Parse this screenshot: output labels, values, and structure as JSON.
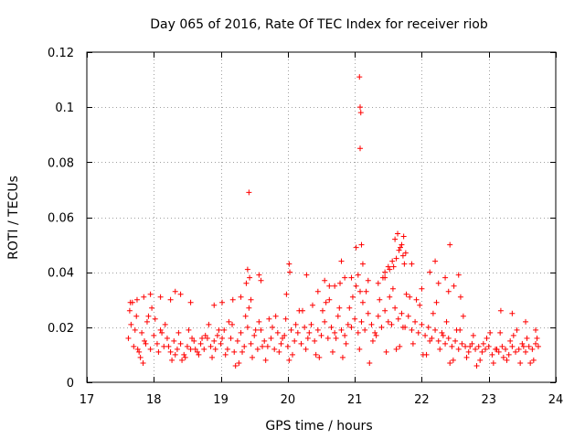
{
  "chart_data": {
    "type": "scatter",
    "title": "Day 065 of 2016, Rate Of TEC Index for receiver riob",
    "xlabel": "GPS time / hours",
    "ylabel": "ROTI / TECUs",
    "xlim": [
      17,
      24
    ],
    "ylim": [
      0,
      0.12
    ],
    "xticks": [
      17,
      18,
      19,
      20,
      21,
      22,
      23,
      24
    ],
    "xtick_labels": [
      "17",
      "18",
      "19",
      "20",
      "21",
      "22",
      "23",
      "24"
    ],
    "yticks": [
      0,
      0.02,
      0.04,
      0.06,
      0.08,
      0.1,
      0.12
    ],
    "ytick_labels": [
      "0",
      "0.02",
      "0.04",
      "0.06",
      "0.08",
      "0.1",
      "0.12"
    ],
    "grid": true,
    "marker": "+",
    "series": [
      {
        "name": "ROTI",
        "color": "#ff0000",
        "x": [
          17.62,
          17.66,
          17.7,
          17.74,
          17.78,
          17.82,
          17.86,
          17.9,
          17.95,
          18.0,
          18.05,
          18.1,
          18.15,
          18.2,
          18.25,
          18.3,
          18.35,
          18.4,
          18.45,
          18.5,
          18.55,
          18.6,
          18.65,
          18.7,
          18.75,
          18.8,
          18.85,
          18.9,
          18.95,
          19.0,
          19.05,
          19.1,
          19.15,
          19.2,
          19.25,
          19.3,
          19.35,
          19.4,
          19.45,
          19.5,
          19.55,
          19.6,
          19.65,
          19.7,
          19.75,
          19.8,
          19.85,
          19.9,
          19.95,
          20.0,
          20.05,
          20.1,
          20.15,
          20.2,
          20.25,
          20.3,
          20.35,
          20.4,
          20.45,
          20.5,
          20.55,
          20.6,
          20.65,
          20.7,
          20.75,
          20.8,
          20.85,
          20.9,
          20.95,
          21.0,
          21.05,
          21.1,
          21.15,
          21.2,
          21.25,
          21.3,
          21.35,
          21.4,
          21.45,
          21.5,
          21.55,
          21.6,
          21.65,
          21.7,
          21.75,
          21.8,
          21.85,
          21.9,
          21.95,
          22.0,
          22.05,
          22.1,
          22.15,
          22.2,
          22.25,
          22.3,
          22.35,
          22.4,
          22.45,
          22.5,
          22.55,
          22.6,
          22.65,
          22.7,
          22.75,
          22.8,
          22.85,
          22.9,
          22.95,
          23.0,
          23.05,
          23.1,
          23.15,
          23.2,
          23.25,
          23.3,
          23.35,
          23.4,
          23.45,
          23.5,
          23.55,
          23.6,
          23.65,
          23.7,
          23.74,
          17.64,
          17.72,
          17.8,
          17.88,
          17.97,
          18.07,
          18.17,
          18.27,
          18.37,
          18.47,
          18.57,
          18.67,
          18.77,
          18.87,
          18.97,
          19.07,
          19.17,
          19.27,
          19.37,
          19.47,
          19.57,
          19.67,
          19.77,
          19.87,
          19.97,
          20.07,
          20.17,
          20.27,
          20.37,
          20.47,
          20.57,
          20.67,
          20.77,
          20.87,
          20.97,
          21.07,
          21.17,
          21.27,
          21.37,
          21.47,
          21.57,
          21.67,
          21.77,
          21.87,
          21.97,
          22.07,
          22.17,
          22.27,
          22.37,
          22.47,
          22.57,
          22.67,
          22.77,
          22.87,
          22.97,
          23.07,
          23.17,
          23.27,
          23.37,
          23.47,
          23.57,
          23.67,
          17.68,
          17.84,
          18.02,
          18.22,
          18.42,
          18.62,
          18.82,
          19.02,
          19.22,
          19.42,
          19.62,
          19.82,
          20.02,
          20.22,
          20.42,
          20.62,
          20.82,
          21.02,
          21.22,
          21.42,
          21.62,
          21.82,
          22.02,
          22.22,
          22.42,
          22.62,
          22.82,
          23.02,
          23.22,
          23.42,
          23.62,
          17.76,
          17.92,
          18.12,
          18.32,
          18.52,
          18.72,
          18.92,
          19.12,
          19.32,
          19.52,
          19.72,
          19.92,
          20.12,
          20.32,
          20.52,
          20.72,
          20.92,
          21.12,
          21.32,
          21.52,
          21.72,
          21.92,
          22.12,
          22.32,
          22.52,
          22.72,
          22.92,
          23.12,
          23.32,
          23.52,
          23.72,
          17.65,
          17.75,
          17.85,
          17.95,
          18.1,
          18.25,
          18.32,
          18.4,
          18.55,
          18.9,
          19.02,
          19.18,
          19.3,
          19.38,
          19.45,
          19.6,
          19.98,
          20.03,
          20.28,
          20.45,
          20.55,
          20.7,
          20.78,
          20.85,
          20.95,
          21.05,
          21.08,
          21.12,
          21.2,
          21.35,
          21.45,
          21.52,
          21.58,
          21.62,
          21.66,
          21.7,
          21.73,
          21.76,
          21.85,
          22.0,
          22.12,
          22.25,
          22.35,
          22.4,
          22.48,
          22.58,
          23.18,
          23.35,
          23.55,
          23.7,
          19.4,
          19.42,
          21.07,
          21.08,
          21.09,
          21.08,
          21.6,
          21.64,
          21.68,
          21.72,
          21.74,
          21.56,
          21.5,
          21.1,
          22.42,
          22.55,
          19.57,
          20.02,
          20.62,
          20.8,
          21.02,
          21.45,
          22.2,
          19.43
        ],
        "y": [
          0.016,
          0.021,
          0.013,
          0.024,
          0.011,
          0.018,
          0.015,
          0.022,
          0.012,
          0.017,
          0.014,
          0.019,
          0.013,
          0.016,
          0.011,
          0.015,
          0.012,
          0.014,
          0.01,
          0.013,
          0.012,
          0.015,
          0.011,
          0.014,
          0.012,
          0.016,
          0.013,
          0.015,
          0.017,
          0.014,
          0.019,
          0.012,
          0.016,
          0.011,
          0.015,
          0.018,
          0.013,
          0.02,
          0.014,
          0.017,
          0.012,
          0.019,
          0.015,
          0.013,
          0.016,
          0.012,
          0.018,
          0.014,
          0.017,
          0.013,
          0.019,
          0.015,
          0.018,
          0.014,
          0.02,
          0.016,
          0.021,
          0.015,
          0.019,
          0.017,
          0.022,
          0.016,
          0.02,
          0.018,
          0.024,
          0.019,
          0.017,
          0.021,
          0.02,
          0.023,
          0.018,
          0.022,
          0.019,
          0.025,
          0.021,
          0.018,
          0.024,
          0.02,
          0.026,
          0.022,
          0.021,
          0.027,
          0.023,
          0.025,
          0.02,
          0.024,
          0.019,
          0.022,
          0.018,
          0.021,
          0.017,
          0.02,
          0.016,
          0.019,
          0.015,
          0.018,
          0.014,
          0.016,
          0.013,
          0.015,
          0.012,
          0.014,
          0.013,
          0.011,
          0.014,
          0.012,
          0.013,
          0.011,
          0.012,
          0.013,
          0.01,
          0.012,
          0.011,
          0.013,
          0.012,
          0.01,
          0.013,
          0.011,
          0.012,
          0.014,
          0.011,
          0.013,
          0.012,
          0.014,
          0.013,
          0.026,
          0.019,
          0.009,
          0.014,
          0.027,
          0.011,
          0.021,
          0.008,
          0.018,
          0.009,
          0.016,
          0.01,
          0.017,
          0.009,
          0.019,
          0.01,
          0.021,
          0.007,
          0.024,
          0.009,
          0.022,
          0.008,
          0.02,
          0.011,
          0.023,
          0.01,
          0.026,
          0.012,
          0.028,
          0.009,
          0.029,
          0.011,
          0.027,
          0.014,
          0.031,
          0.012,
          0.033,
          0.015,
          0.03,
          0.011,
          0.034,
          0.013,
          0.032,
          0.014,
          0.028,
          0.01,
          0.025,
          0.012,
          0.022,
          0.008,
          0.019,
          0.009,
          0.017,
          0.008,
          0.016,
          0.007,
          0.018,
          0.008,
          0.017,
          0.007,
          0.016,
          0.008,
          0.029,
          0.007,
          0.023,
          0.013,
          0.008,
          0.012,
          0.021,
          0.016,
          0.006,
          0.027,
          0.013,
          0.024,
          0.008,
          0.026,
          0.01,
          0.03,
          0.009,
          0.035,
          0.007,
          0.038,
          0.012,
          0.031,
          0.01,
          0.029,
          0.007,
          0.024,
          0.006,
          0.018,
          0.009,
          0.019,
          0.007,
          0.012,
          0.024,
          0.018,
          0.01,
          0.019,
          0.016,
          0.012,
          0.022,
          0.011,
          0.019,
          0.023,
          0.016,
          0.021,
          0.018,
          0.026,
          0.016,
          0.027,
          0.029,
          0.017,
          0.031,
          0.02,
          0.03,
          0.015,
          0.017,
          0.019,
          0.013,
          0.014,
          0.012,
          0.015,
          0.013,
          0.016,
          0.029,
          0.03,
          0.031,
          0.032,
          0.031,
          0.03,
          0.033,
          0.032,
          0.029,
          0.028,
          0.029,
          0.03,
          0.031,
          0.036,
          0.03,
          0.037,
          0.032,
          0.04,
          0.039,
          0.033,
          0.037,
          0.035,
          0.036,
          0.038,
          0.038,
          0.039,
          0.033,
          0.043,
          0.037,
          0.036,
          0.038,
          0.041,
          0.042,
          0.045,
          0.048,
          0.05,
          0.053,
          0.047,
          0.043,
          0.034,
          0.04,
          0.036,
          0.038,
          0.033,
          0.035,
          0.031,
          0.026,
          0.025,
          0.022,
          0.019,
          0.041,
          0.069,
          0.111,
          0.1,
          0.098,
          0.085,
          0.052,
          0.054,
          0.049,
          0.046,
          0.043,
          0.044,
          0.042,
          0.05,
          0.05,
          0.039,
          0.039,
          0.043,
          0.035,
          0.044,
          0.049,
          0.04,
          0.044,
          0.038
        ]
      }
    ]
  }
}
